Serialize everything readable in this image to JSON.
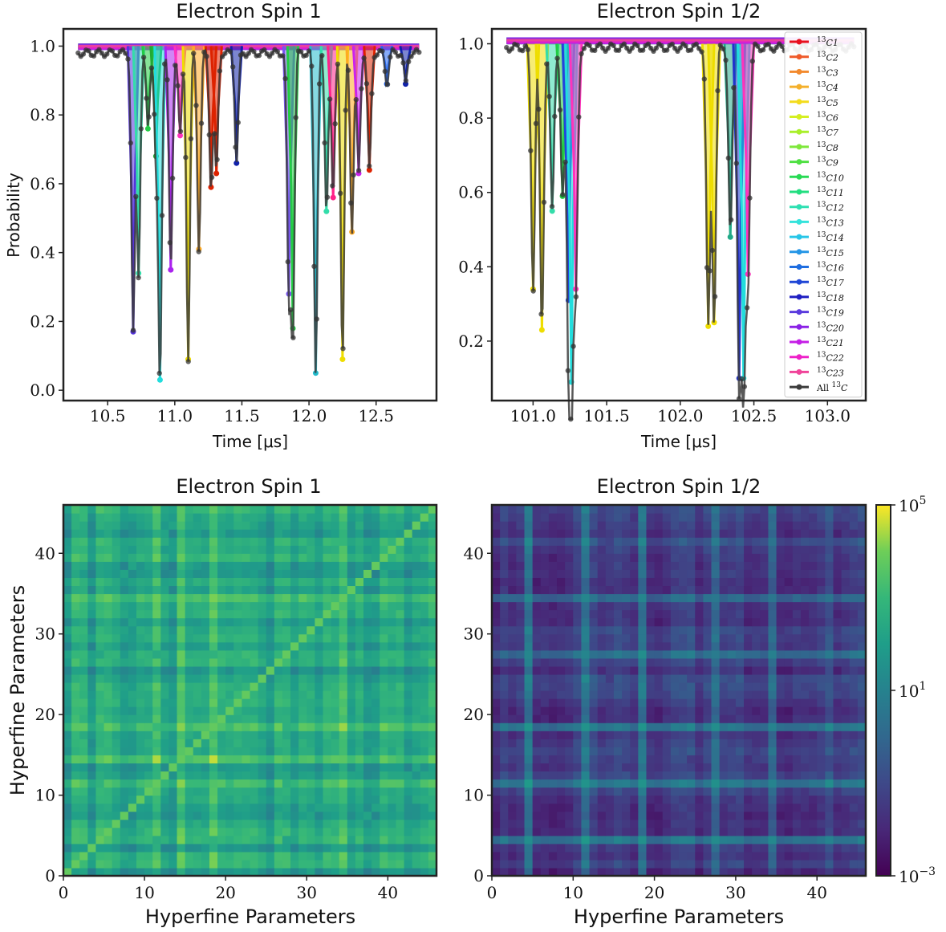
{
  "chart_data": [
    {
      "type": "line",
      "panel": "top-left",
      "title": "Electron Spin 1",
      "xlabel": "Time [μs]",
      "ylabel": "Probability",
      "xlim": [
        10.17,
        12.95
      ],
      "ylim": [
        -0.03,
        1.05
      ],
      "xticks": [
        10.5,
        11.0,
        11.5,
        12.0,
        12.5
      ],
      "xtick_labels": [
        "10.5",
        "11.0",
        "11.5",
        "12.0",
        "12.5"
      ],
      "yticks": [
        0.0,
        0.2,
        0.4,
        0.6,
        0.8,
        1.0
      ],
      "ytick_labels": [
        "0.0",
        "0.2",
        "0.4",
        "0.6",
        "0.8",
        "1.0"
      ],
      "x_range": [
        10.28,
        12.82
      ],
      "baseline": 0.98,
      "dips": [
        {
          "x": 10.69,
          "min": 0.17,
          "color": "#5533dd"
        },
        {
          "x": 10.73,
          "min": 0.34,
          "color": "#33ddaa"
        },
        {
          "x": 10.8,
          "min": 0.76,
          "color": "#22cc44"
        },
        {
          "x": 10.86,
          "min": 0.68,
          "color": "#22aa33"
        },
        {
          "x": 10.89,
          "min": 0.03,
          "color": "#22dddd"
        },
        {
          "x": 10.97,
          "min": 0.35,
          "color": "#aa22ee"
        },
        {
          "x": 11.04,
          "min": 0.74,
          "color": "#ff33bb"
        },
        {
          "x": 11.1,
          "min": 0.09,
          "color": "#eedd00"
        },
        {
          "x": 11.18,
          "min": 0.41,
          "color": "#ffaa22"
        },
        {
          "x": 11.27,
          "min": 0.59,
          "color": "#dd2200"
        },
        {
          "x": 11.31,
          "min": 0.63,
          "color": "#dd2200"
        },
        {
          "x": 11.46,
          "min": 0.66,
          "color": "#1122aa"
        },
        {
          "x": 11.85,
          "min": 0.28,
          "color": "#7755ee"
        },
        {
          "x": 11.88,
          "min": 0.18,
          "color": "#22cc44"
        },
        {
          "x": 12.05,
          "min": 0.05,
          "color": "#22bbcc"
        },
        {
          "x": 12.13,
          "min": 0.52,
          "color": "#33ddaa"
        },
        {
          "x": 12.18,
          "min": 0.56,
          "color": "#ff2288"
        },
        {
          "x": 12.25,
          "min": 0.09,
          "color": "#eedd00"
        },
        {
          "x": 12.32,
          "min": 0.46,
          "color": "#ffaa22"
        },
        {
          "x": 12.37,
          "min": 0.63,
          "color": "#cc22ee"
        },
        {
          "x": 12.45,
          "min": 0.64,
          "color": "#dd2200"
        },
        {
          "x": 12.58,
          "min": 0.89,
          "color": "#2266ee"
        },
        {
          "x": 12.72,
          "min": 0.89,
          "color": "#1122aa"
        }
      ]
    },
    {
      "type": "line",
      "panel": "top-right",
      "title": "Electron Spin 1/2",
      "xlabel": "Time [μs]",
      "ylabel": "",
      "xlim": [
        100.72,
        103.26
      ],
      "ylim": [
        0.04,
        1.04
      ],
      "xticks": [
        101.0,
        101.5,
        102.0,
        102.5,
        103.0
      ],
      "xtick_labels": [
        "101.0",
        "101.5",
        "102.0",
        "102.5",
        "103.0"
      ],
      "yticks": [
        0.2,
        0.4,
        0.6,
        0.8,
        1.0
      ],
      "ytick_labels": [
        "0.2",
        "0.4",
        "0.6",
        "0.8",
        "1.0"
      ],
      "x_range": [
        100.82,
        103.18
      ],
      "baseline": 0.99,
      "dips": [
        {
          "x": 101.0,
          "min": 0.34,
          "color": "#eedd00"
        },
        {
          "x": 101.06,
          "min": 0.23,
          "color": "#eedd00"
        },
        {
          "x": 101.13,
          "min": 0.55,
          "color": "#33ddaa"
        },
        {
          "x": 101.2,
          "min": 0.59,
          "color": "#22cc44"
        },
        {
          "x": 101.24,
          "min": 0.31,
          "color": "#2244dd"
        },
        {
          "x": 101.26,
          "min": 0.09,
          "color": "#22dddd"
        },
        {
          "x": 101.29,
          "min": 0.34,
          "color": "#ff33bb"
        },
        {
          "x": 102.19,
          "min": 0.24,
          "color": "#eedd00"
        },
        {
          "x": 102.23,
          "min": 0.25,
          "color": "#eedd00"
        },
        {
          "x": 102.34,
          "min": 0.48,
          "color": "#22aa88"
        },
        {
          "x": 102.4,
          "min": 0.1,
          "color": "#2233cc"
        },
        {
          "x": 102.43,
          "min": 0.1,
          "color": "#22dddd"
        },
        {
          "x": 102.46,
          "min": 0.38,
          "color": "#ff33bb"
        }
      ]
    },
    {
      "type": "heatmap",
      "panel": "bottom-left",
      "title": "Electron Spin 1",
      "xlabel": "Hyperfine Parameters",
      "ylabel": "Hyperfine Parameters",
      "size": 46,
      "xticks": [
        0,
        10,
        20,
        30,
        40
      ],
      "yticks": [
        0,
        10,
        20,
        30,
        40
      ],
      "colorscale": "viridis",
      "log_range": [
        -3,
        5
      ],
      "diagonal_value": 3.8,
      "base_value": 0.6,
      "strong_indices": [
        4,
        11,
        18,
        27
      ],
      "weak_indices": [
        14,
        34,
        41
      ]
    },
    {
      "type": "heatmap",
      "panel": "bottom-right",
      "title": "Electron Spin 1/2",
      "xlabel": "Hyperfine Parameters",
      "ylabel": "",
      "size": 46,
      "xticks": [
        0,
        10,
        20,
        30,
        40
      ],
      "yticks": [
        0,
        10,
        20,
        30,
        40
      ],
      "colorscale": "viridis",
      "log_range": [
        -3,
        5
      ],
      "base_value": -2.6,
      "strong_indices": [
        4,
        11,
        18,
        27,
        34
      ],
      "weak_indices": [
        14,
        24,
        41
      ],
      "colorbar": {
        "scale": "log",
        "ticks": [
          {
            "base": "10",
            "exp": "5",
            "log": 5
          },
          {
            "base": "10",
            "exp": "1",
            "log": 1
          },
          {
            "base": "10",
            "exp": "−3",
            "log": -3
          }
        ]
      }
    }
  ],
  "legend": {
    "placement": "top-right",
    "prefix": "13",
    "items": [
      {
        "label": "C1",
        "color": "#e8101e"
      },
      {
        "label": "C2",
        "color": "#ef5a2a"
      },
      {
        "label": "C3",
        "color": "#f28a2e"
      },
      {
        "label": "C4",
        "color": "#f4b02c"
      },
      {
        "label": "C5",
        "color": "#f3dc1c"
      },
      {
        "label": "C6",
        "color": "#d5ef22"
      },
      {
        "label": "C7",
        "color": "#a9ef2a"
      },
      {
        "label": "C8",
        "color": "#7fe83c"
      },
      {
        "label": "C9",
        "color": "#4fe043"
      },
      {
        "label": "C10",
        "color": "#28da55"
      },
      {
        "label": "C11",
        "color": "#22de80"
      },
      {
        "label": "C12",
        "color": "#2ee0b2"
      },
      {
        "label": "C13",
        "color": "#34e3dc"
      },
      {
        "label": "C14",
        "color": "#28c6e8"
      },
      {
        "label": "C15",
        "color": "#2596e6"
      },
      {
        "label": "C16",
        "color": "#1f6ee0"
      },
      {
        "label": "C17",
        "color": "#1f46d6"
      },
      {
        "label": "C18",
        "color": "#1f1fc2"
      },
      {
        "label": "C19",
        "color": "#5a3bdd"
      },
      {
        "label": "C20",
        "color": "#8a22e6"
      },
      {
        "label": "C21",
        "color": "#c41fe6"
      },
      {
        "label": "C22",
        "color": "#ee21c8"
      },
      {
        "label": "C23",
        "color": "#f0449a"
      },
      {
        "label": "All",
        "color": "#3c3c3c",
        "suffix": "C"
      }
    ]
  }
}
